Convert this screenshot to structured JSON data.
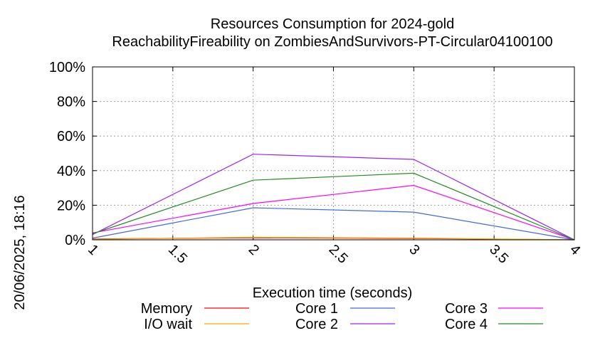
{
  "chart_data": {
    "type": "line",
    "title_line1": "Resources Consumption for 2024-gold",
    "title_line2": "ReachabilityFireability on ZombiesAndSurvivors-PT-Circular04100100",
    "xlabel": "Execution time (seconds)",
    "ylabel": "",
    "timestamp": "20/06/2025, 18:16",
    "xlim": [
      1,
      4
    ],
    "ylim": [
      0,
      100
    ],
    "x_ticks": [
      1,
      1.5,
      2,
      2.5,
      3,
      3.5,
      4
    ],
    "x_tick_labels": [
      "1",
      "1.5",
      "2",
      "2.5",
      "3",
      "3.5",
      "4"
    ],
    "y_ticks": [
      0,
      20,
      40,
      60,
      80,
      100
    ],
    "y_tick_labels": [
      "0%",
      "20%",
      "40%",
      "60%",
      "80%",
      "100%"
    ],
    "grid": true,
    "legend_position": "bottom",
    "series": [
      {
        "name": "Memory",
        "color": "#ff0000",
        "x": [
          1,
          2,
          3,
          4
        ],
        "values": [
          0.5,
          1.2,
          0.8,
          0
        ]
      },
      {
        "name": "I/O wait",
        "color": "#ffa500",
        "x": [
          1,
          2,
          3,
          4
        ],
        "values": [
          0.3,
          1.5,
          1.0,
          0
        ]
      },
      {
        "name": "Core 1",
        "color": "#4169e1",
        "x": [
          1,
          2,
          3,
          4
        ],
        "values": [
          1,
          18.5,
          16,
          0
        ]
      },
      {
        "name": "Core 2",
        "color": "#a020f0",
        "x": [
          1,
          2,
          3,
          4
        ],
        "values": [
          3,
          49.5,
          46.5,
          0
        ]
      },
      {
        "name": "Core 3",
        "color": "#ff00ff",
        "x": [
          1,
          2,
          3,
          4
        ],
        "values": [
          4,
          21,
          31.5,
          0
        ]
      },
      {
        "name": "Core 4",
        "color": "#228b22",
        "x": [
          1,
          2,
          3,
          4
        ],
        "values": [
          3.5,
          34.5,
          38.5,
          0
        ]
      }
    ]
  }
}
